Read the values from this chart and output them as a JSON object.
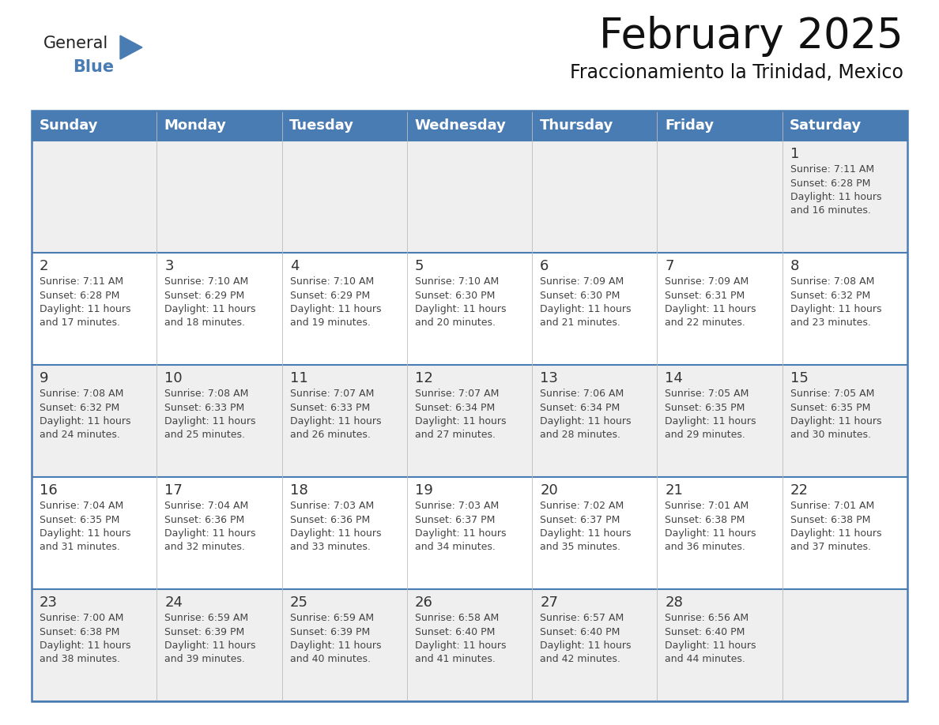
{
  "title": "February 2025",
  "subtitle": "Fraccionamiento la Trinidad, Mexico",
  "header_color": "#4a7cb4",
  "header_text_color": "#FFFFFF",
  "row_bg_gray": "#EFEFEF",
  "row_bg_white": "#FFFFFF",
  "day_headers": [
    "Sunday",
    "Monday",
    "Tuesday",
    "Wednesday",
    "Thursday",
    "Friday",
    "Saturday"
  ],
  "calendar_data": [
    [
      null,
      null,
      null,
      null,
      null,
      null,
      {
        "day": "1",
        "sunrise": "7:11 AM",
        "sunset": "6:28 PM",
        "daylight": "11 hours\nand 16 minutes."
      }
    ],
    [
      {
        "day": "2",
        "sunrise": "7:11 AM",
        "sunset": "6:28 PM",
        "daylight": "11 hours\nand 17 minutes."
      },
      {
        "day": "3",
        "sunrise": "7:10 AM",
        "sunset": "6:29 PM",
        "daylight": "11 hours\nand 18 minutes."
      },
      {
        "day": "4",
        "sunrise": "7:10 AM",
        "sunset": "6:29 PM",
        "daylight": "11 hours\nand 19 minutes."
      },
      {
        "day": "5",
        "sunrise": "7:10 AM",
        "sunset": "6:30 PM",
        "daylight": "11 hours\nand 20 minutes."
      },
      {
        "day": "6",
        "sunrise": "7:09 AM",
        "sunset": "6:30 PM",
        "daylight": "11 hours\nand 21 minutes."
      },
      {
        "day": "7",
        "sunrise": "7:09 AM",
        "sunset": "6:31 PM",
        "daylight": "11 hours\nand 22 minutes."
      },
      {
        "day": "8",
        "sunrise": "7:08 AM",
        "sunset": "6:32 PM",
        "daylight": "11 hours\nand 23 minutes."
      }
    ],
    [
      {
        "day": "9",
        "sunrise": "7:08 AM",
        "sunset": "6:32 PM",
        "daylight": "11 hours\nand 24 minutes."
      },
      {
        "day": "10",
        "sunrise": "7:08 AM",
        "sunset": "6:33 PM",
        "daylight": "11 hours\nand 25 minutes."
      },
      {
        "day": "11",
        "sunrise": "7:07 AM",
        "sunset": "6:33 PM",
        "daylight": "11 hours\nand 26 minutes."
      },
      {
        "day": "12",
        "sunrise": "7:07 AM",
        "sunset": "6:34 PM",
        "daylight": "11 hours\nand 27 minutes."
      },
      {
        "day": "13",
        "sunrise": "7:06 AM",
        "sunset": "6:34 PM",
        "daylight": "11 hours\nand 28 minutes."
      },
      {
        "day": "14",
        "sunrise": "7:05 AM",
        "sunset": "6:35 PM",
        "daylight": "11 hours\nand 29 minutes."
      },
      {
        "day": "15",
        "sunrise": "7:05 AM",
        "sunset": "6:35 PM",
        "daylight": "11 hours\nand 30 minutes."
      }
    ],
    [
      {
        "day": "16",
        "sunrise": "7:04 AM",
        "sunset": "6:35 PM",
        "daylight": "11 hours\nand 31 minutes."
      },
      {
        "day": "17",
        "sunrise": "7:04 AM",
        "sunset": "6:36 PM",
        "daylight": "11 hours\nand 32 minutes."
      },
      {
        "day": "18",
        "sunrise": "7:03 AM",
        "sunset": "6:36 PM",
        "daylight": "11 hours\nand 33 minutes."
      },
      {
        "day": "19",
        "sunrise": "7:03 AM",
        "sunset": "6:37 PM",
        "daylight": "11 hours\nand 34 minutes."
      },
      {
        "day": "20",
        "sunrise": "7:02 AM",
        "sunset": "6:37 PM",
        "daylight": "11 hours\nand 35 minutes."
      },
      {
        "day": "21",
        "sunrise": "7:01 AM",
        "sunset": "6:38 PM",
        "daylight": "11 hours\nand 36 minutes."
      },
      {
        "day": "22",
        "sunrise": "7:01 AM",
        "sunset": "6:38 PM",
        "daylight": "11 hours\nand 37 minutes."
      }
    ],
    [
      {
        "day": "23",
        "sunrise": "7:00 AM",
        "sunset": "6:38 PM",
        "daylight": "11 hours\nand 38 minutes."
      },
      {
        "day": "24",
        "sunrise": "6:59 AM",
        "sunset": "6:39 PM",
        "daylight": "11 hours\nand 39 minutes."
      },
      {
        "day": "25",
        "sunrise": "6:59 AM",
        "sunset": "6:39 PM",
        "daylight": "11 hours\nand 40 minutes."
      },
      {
        "day": "26",
        "sunrise": "6:58 AM",
        "sunset": "6:40 PM",
        "daylight": "11 hours\nand 41 minutes."
      },
      {
        "day": "27",
        "sunrise": "6:57 AM",
        "sunset": "6:40 PM",
        "daylight": "11 hours\nand 42 minutes."
      },
      {
        "day": "28",
        "sunrise": "6:56 AM",
        "sunset": "6:40 PM",
        "daylight": "11 hours\nand 44 minutes."
      },
      null
    ]
  ],
  "logo_general_color": "#222222",
  "logo_blue_color": "#4a7cb4",
  "logo_triangle_color": "#4a7cb4",
  "border_color": "#4a7cb4",
  "title_fontsize": 38,
  "subtitle_fontsize": 17,
  "header_fontsize": 13,
  "day_num_fontsize": 13,
  "cell_text_fontsize": 9,
  "text_color": "#333333",
  "cell_info_color": "#444444"
}
